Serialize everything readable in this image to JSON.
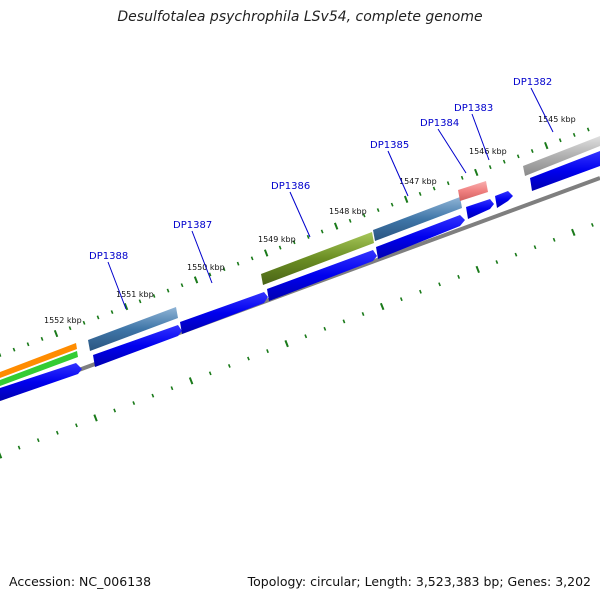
{
  "title": "Desulfotalea psychrophila LSv54, complete genome",
  "accession": "Accession: NC_006138",
  "topology": "Topology: circular; Length: 3,523,383 bp; Genes: 3,202",
  "tick_labels": [
    "1552 kbp",
    "1551 kbp",
    "1550 kbp",
    "1549 kbp",
    "1548 kbp",
    "1547 kbp",
    "1546 kbp",
    "1545 kbp"
  ],
  "gene_labels": [
    "DP1388",
    "DP1387",
    "DP1386",
    "DP1385",
    "DP1384",
    "DP1383",
    "DP1382"
  ],
  "colors": {
    "cds_blue": "#0000ee",
    "backbone": "#7f7f7f",
    "tick_green": "#1a7a1a",
    "label_blue": "#0000cc",
    "steelblue": "#3f76a8",
    "olive": "#6b8e23",
    "salmon": "#f08080",
    "silver": "#b0b0b0",
    "orange": "#ff8c00",
    "green": "#33cc33"
  }
}
